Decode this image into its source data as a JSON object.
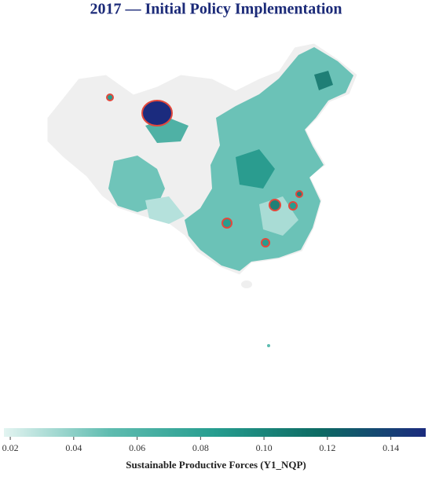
{
  "chart_data": {
    "type": "choropleth",
    "title": "2017 — Initial Policy Implementation",
    "colorbar": {
      "label": "Sustainable Productive Forces (Y1_NQP)",
      "lim": [
        0.018,
        0.151
      ],
      "ticks": [
        0.02,
        0.04,
        0.06,
        0.08,
        {
          "value": 0.1,
          "label": "0.10"
        },
        0.12,
        0.14
      ],
      "colors": [
        "#e3f4f1",
        "#5fbcb0",
        "#269d8f",
        "#0d6a63",
        "#1b2b7e"
      ]
    }
  }
}
